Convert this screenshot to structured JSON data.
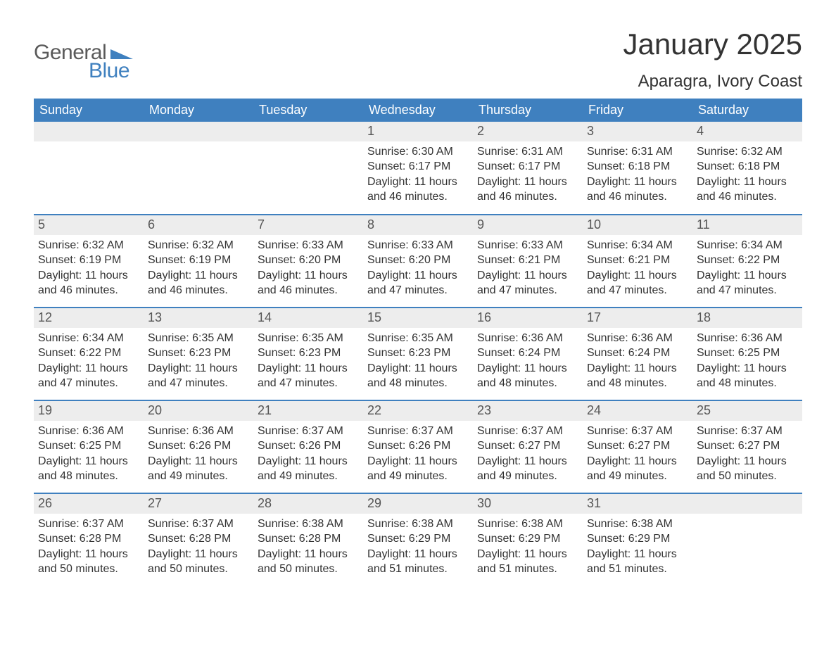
{
  "logo": {
    "word1": "General",
    "word2": "Blue",
    "general_color": "#5a5a5a",
    "blue_color": "#3f80bf"
  },
  "header": {
    "title": "January 2025",
    "location": "Aparagra, Ivory Coast"
  },
  "calendar": {
    "header_bg": "#3f80bf",
    "header_fg": "#ffffff",
    "daynum_bg": "#ededed",
    "daynum_fg": "#555555",
    "row_border": "#3f80bf",
    "body_fg": "#333333",
    "background": "#ffffff",
    "font_family": "Arial",
    "day_headers": [
      "Sunday",
      "Monday",
      "Tuesday",
      "Wednesday",
      "Thursday",
      "Friday",
      "Saturday"
    ],
    "weeks": [
      [
        {
          "n": null
        },
        {
          "n": null
        },
        {
          "n": null
        },
        {
          "n": "1",
          "sunrise": "Sunrise: 6:30 AM",
          "sunset": "Sunset: 6:17 PM",
          "daylight1": "Daylight: 11 hours",
          "daylight2": "and 46 minutes."
        },
        {
          "n": "2",
          "sunrise": "Sunrise: 6:31 AM",
          "sunset": "Sunset: 6:17 PM",
          "daylight1": "Daylight: 11 hours",
          "daylight2": "and 46 minutes."
        },
        {
          "n": "3",
          "sunrise": "Sunrise: 6:31 AM",
          "sunset": "Sunset: 6:18 PM",
          "daylight1": "Daylight: 11 hours",
          "daylight2": "and 46 minutes."
        },
        {
          "n": "4",
          "sunrise": "Sunrise: 6:32 AM",
          "sunset": "Sunset: 6:18 PM",
          "daylight1": "Daylight: 11 hours",
          "daylight2": "and 46 minutes."
        }
      ],
      [
        {
          "n": "5",
          "sunrise": "Sunrise: 6:32 AM",
          "sunset": "Sunset: 6:19 PM",
          "daylight1": "Daylight: 11 hours",
          "daylight2": "and 46 minutes."
        },
        {
          "n": "6",
          "sunrise": "Sunrise: 6:32 AM",
          "sunset": "Sunset: 6:19 PM",
          "daylight1": "Daylight: 11 hours",
          "daylight2": "and 46 minutes."
        },
        {
          "n": "7",
          "sunrise": "Sunrise: 6:33 AM",
          "sunset": "Sunset: 6:20 PM",
          "daylight1": "Daylight: 11 hours",
          "daylight2": "and 46 minutes."
        },
        {
          "n": "8",
          "sunrise": "Sunrise: 6:33 AM",
          "sunset": "Sunset: 6:20 PM",
          "daylight1": "Daylight: 11 hours",
          "daylight2": "and 47 minutes."
        },
        {
          "n": "9",
          "sunrise": "Sunrise: 6:33 AM",
          "sunset": "Sunset: 6:21 PM",
          "daylight1": "Daylight: 11 hours",
          "daylight2": "and 47 minutes."
        },
        {
          "n": "10",
          "sunrise": "Sunrise: 6:34 AM",
          "sunset": "Sunset: 6:21 PM",
          "daylight1": "Daylight: 11 hours",
          "daylight2": "and 47 minutes."
        },
        {
          "n": "11",
          "sunrise": "Sunrise: 6:34 AM",
          "sunset": "Sunset: 6:22 PM",
          "daylight1": "Daylight: 11 hours",
          "daylight2": "and 47 minutes."
        }
      ],
      [
        {
          "n": "12",
          "sunrise": "Sunrise: 6:34 AM",
          "sunset": "Sunset: 6:22 PM",
          "daylight1": "Daylight: 11 hours",
          "daylight2": "and 47 minutes."
        },
        {
          "n": "13",
          "sunrise": "Sunrise: 6:35 AM",
          "sunset": "Sunset: 6:23 PM",
          "daylight1": "Daylight: 11 hours",
          "daylight2": "and 47 minutes."
        },
        {
          "n": "14",
          "sunrise": "Sunrise: 6:35 AM",
          "sunset": "Sunset: 6:23 PM",
          "daylight1": "Daylight: 11 hours",
          "daylight2": "and 47 minutes."
        },
        {
          "n": "15",
          "sunrise": "Sunrise: 6:35 AM",
          "sunset": "Sunset: 6:23 PM",
          "daylight1": "Daylight: 11 hours",
          "daylight2": "and 48 minutes."
        },
        {
          "n": "16",
          "sunrise": "Sunrise: 6:36 AM",
          "sunset": "Sunset: 6:24 PM",
          "daylight1": "Daylight: 11 hours",
          "daylight2": "and 48 minutes."
        },
        {
          "n": "17",
          "sunrise": "Sunrise: 6:36 AM",
          "sunset": "Sunset: 6:24 PM",
          "daylight1": "Daylight: 11 hours",
          "daylight2": "and 48 minutes."
        },
        {
          "n": "18",
          "sunrise": "Sunrise: 6:36 AM",
          "sunset": "Sunset: 6:25 PM",
          "daylight1": "Daylight: 11 hours",
          "daylight2": "and 48 minutes."
        }
      ],
      [
        {
          "n": "19",
          "sunrise": "Sunrise: 6:36 AM",
          "sunset": "Sunset: 6:25 PM",
          "daylight1": "Daylight: 11 hours",
          "daylight2": "and 48 minutes."
        },
        {
          "n": "20",
          "sunrise": "Sunrise: 6:36 AM",
          "sunset": "Sunset: 6:26 PM",
          "daylight1": "Daylight: 11 hours",
          "daylight2": "and 49 minutes."
        },
        {
          "n": "21",
          "sunrise": "Sunrise: 6:37 AM",
          "sunset": "Sunset: 6:26 PM",
          "daylight1": "Daylight: 11 hours",
          "daylight2": "and 49 minutes."
        },
        {
          "n": "22",
          "sunrise": "Sunrise: 6:37 AM",
          "sunset": "Sunset: 6:26 PM",
          "daylight1": "Daylight: 11 hours",
          "daylight2": "and 49 minutes."
        },
        {
          "n": "23",
          "sunrise": "Sunrise: 6:37 AM",
          "sunset": "Sunset: 6:27 PM",
          "daylight1": "Daylight: 11 hours",
          "daylight2": "and 49 minutes."
        },
        {
          "n": "24",
          "sunrise": "Sunrise: 6:37 AM",
          "sunset": "Sunset: 6:27 PM",
          "daylight1": "Daylight: 11 hours",
          "daylight2": "and 49 minutes."
        },
        {
          "n": "25",
          "sunrise": "Sunrise: 6:37 AM",
          "sunset": "Sunset: 6:27 PM",
          "daylight1": "Daylight: 11 hours",
          "daylight2": "and 50 minutes."
        }
      ],
      [
        {
          "n": "26",
          "sunrise": "Sunrise: 6:37 AM",
          "sunset": "Sunset: 6:28 PM",
          "daylight1": "Daylight: 11 hours",
          "daylight2": "and 50 minutes."
        },
        {
          "n": "27",
          "sunrise": "Sunrise: 6:37 AM",
          "sunset": "Sunset: 6:28 PM",
          "daylight1": "Daylight: 11 hours",
          "daylight2": "and 50 minutes."
        },
        {
          "n": "28",
          "sunrise": "Sunrise: 6:38 AM",
          "sunset": "Sunset: 6:28 PM",
          "daylight1": "Daylight: 11 hours",
          "daylight2": "and 50 minutes."
        },
        {
          "n": "29",
          "sunrise": "Sunrise: 6:38 AM",
          "sunset": "Sunset: 6:29 PM",
          "daylight1": "Daylight: 11 hours",
          "daylight2": "and 51 minutes."
        },
        {
          "n": "30",
          "sunrise": "Sunrise: 6:38 AM",
          "sunset": "Sunset: 6:29 PM",
          "daylight1": "Daylight: 11 hours",
          "daylight2": "and 51 minutes."
        },
        {
          "n": "31",
          "sunrise": "Sunrise: 6:38 AM",
          "sunset": "Sunset: 6:29 PM",
          "daylight1": "Daylight: 11 hours",
          "daylight2": "and 51 minutes."
        },
        {
          "n": null
        }
      ]
    ]
  }
}
